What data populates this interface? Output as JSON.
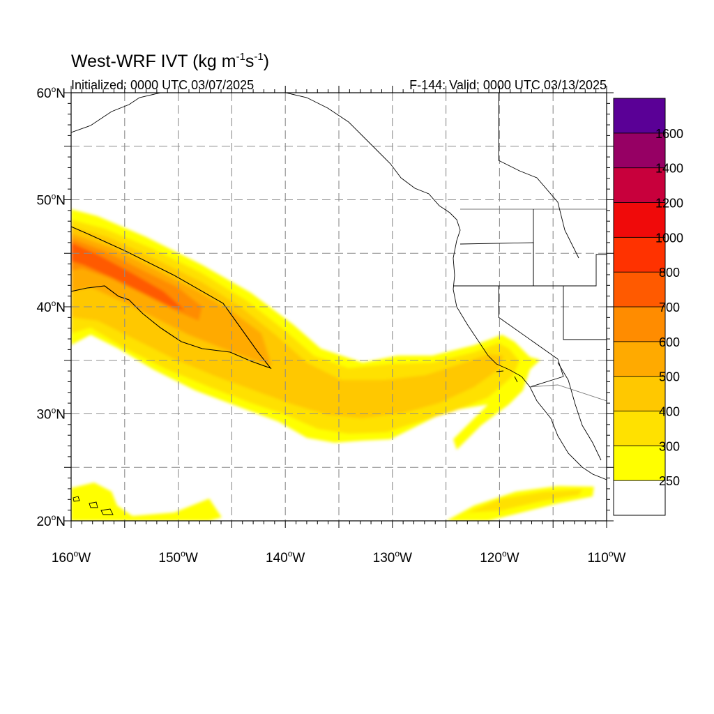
{
  "header": {
    "title_main": "West-WRF IVT (kg m",
    "title_exp1": "-1",
    "title_mid": "s",
    "title_exp2": "-1",
    "title_end": ")",
    "initialized": "Initialized: 0000 UTC 03/07/2025",
    "valid": "F-144: Valid: 0000 UTC 03/13/2025"
  },
  "axes": {
    "x_ticks": [
      {
        "deg": "160",
        "hem": "W",
        "lon": -160
      },
      {
        "deg": "150",
        "hem": "W",
        "lon": -150
      },
      {
        "deg": "140",
        "hem": "W",
        "lon": -140
      },
      {
        "deg": "130",
        "hem": "W",
        "lon": -130
      },
      {
        "deg": "120",
        "hem": "W",
        "lon": -120
      },
      {
        "deg": "110",
        "hem": "W",
        "lon": -110
      }
    ],
    "y_ticks": [
      {
        "deg": "60",
        "hem": "N",
        "lat": 60
      },
      {
        "deg": "50",
        "hem": "N",
        "lat": 50
      },
      {
        "deg": "40",
        "hem": "N",
        "lat": 40
      },
      {
        "deg": "30",
        "hem": "N",
        "lat": 30
      },
      {
        "deg": "20",
        "hem": "N",
        "lat": 20
      }
    ],
    "lon_range": [
      -160,
      -110
    ],
    "lat_range": [
      20,
      60
    ],
    "grid": true
  },
  "colorbar": {
    "levels": [
      {
        "value": 250,
        "color": "#ffff00",
        "label": "250"
      },
      {
        "value": 300,
        "color": "#ffe100",
        "label": "300"
      },
      {
        "value": 400,
        "color": "#ffc800",
        "label": "400"
      },
      {
        "value": 500,
        "color": "#ffaa00",
        "label": "500"
      },
      {
        "value": 600,
        "color": "#ff8c00",
        "label": "600"
      },
      {
        "value": 700,
        "color": "#ff5a00",
        "label": "700"
      },
      {
        "value": 800,
        "color": "#ff3200",
        "label": "800"
      },
      {
        "value": 1000,
        "color": "#f00a0a",
        "label": "1000"
      },
      {
        "value": 1200,
        "color": "#c8003c",
        "label": "1200"
      },
      {
        "value": 1400,
        "color": "#960064",
        "label": "1400"
      },
      {
        "value": 1600,
        "color": "#5a0096",
        "label": "1600"
      }
    ],
    "below_color": "#ffffff"
  }
}
